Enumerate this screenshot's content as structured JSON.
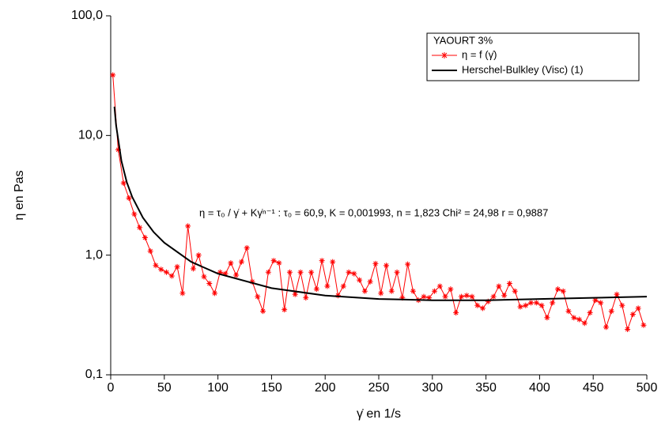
{
  "chart_data": {
    "type": "line",
    "log_y": true,
    "legend_title": "YAOURT 3%",
    "annotation": "η = τ₀ / γ̇ + Kγ̇ⁿ⁻¹ : τ₀ = 60,9, K = 0,001993, n = 1,823 Chi² = 24,98 r = 0,9887",
    "xlabel": "γ̇ en 1/s",
    "ylabel": "η en Pas",
    "xlim": [
      0,
      500
    ],
    "ylim": [
      0.1,
      100
    ],
    "xticks": [
      0,
      50,
      100,
      150,
      200,
      250,
      300,
      350,
      400,
      450,
      500
    ],
    "yticks": [
      {
        "value": 0.1,
        "label": "0,1"
      },
      {
        "value": 1,
        "label": "1,0"
      },
      {
        "value": 10,
        "label": "10,0"
      },
      {
        "value": 100,
        "label": "100,0"
      }
    ],
    "series": [
      {
        "name": "η = f (γ̇)",
        "color": "#ff0000",
        "marker": "asterisk",
        "x": [
          2,
          7,
          12,
          17,
          22,
          27,
          32,
          37,
          42,
          47,
          52,
          57,
          62,
          67,
          72,
          77,
          82,
          87,
          92,
          97,
          102,
          107,
          112,
          117,
          122,
          127,
          132,
          137,
          142,
          147,
          152,
          157,
          162,
          167,
          172,
          177,
          182,
          187,
          192,
          197,
          202,
          207,
          212,
          217,
          222,
          227,
          232,
          237,
          242,
          247,
          252,
          257,
          262,
          267,
          272,
          277,
          282,
          287,
          292,
          297,
          302,
          307,
          312,
          317,
          322,
          327,
          332,
          337,
          342,
          347,
          352,
          357,
          362,
          367,
          372,
          377,
          382,
          387,
          392,
          397,
          402,
          407,
          412,
          417,
          422,
          427,
          432,
          437,
          442,
          447,
          452,
          457,
          462,
          467,
          472,
          477,
          482,
          487,
          492,
          497
        ],
        "values": [
          32,
          7.6,
          4.0,
          3.0,
          2.2,
          1.7,
          1.4,
          1.08,
          0.82,
          0.76,
          0.72,
          0.67,
          0.8,
          0.48,
          1.75,
          0.77,
          1.0,
          0.66,
          0.58,
          0.48,
          0.72,
          0.7,
          0.86,
          0.68,
          0.88,
          1.15,
          0.6,
          0.45,
          0.34,
          0.72,
          0.9,
          0.86,
          0.35,
          0.72,
          0.47,
          0.72,
          0.44,
          0.72,
          0.52,
          0.9,
          0.55,
          0.88,
          0.46,
          0.55,
          0.72,
          0.7,
          0.62,
          0.5,
          0.6,
          0.85,
          0.48,
          0.82,
          0.5,
          0.72,
          0.44,
          0.84,
          0.5,
          0.42,
          0.45,
          0.44,
          0.5,
          0.55,
          0.45,
          0.52,
          0.33,
          0.45,
          0.46,
          0.45,
          0.38,
          0.36,
          0.41,
          0.45,
          0.55,
          0.46,
          0.58,
          0.5,
          0.37,
          0.38,
          0.4,
          0.4,
          0.38,
          0.3,
          0.4,
          0.52,
          0.5,
          0.34,
          0.3,
          0.29,
          0.27,
          0.33,
          0.42,
          0.4,
          0.25,
          0.34,
          0.47,
          0.38,
          0.24,
          0.32,
          0.36,
          0.26
        ]
      },
      {
        "name": "Herschel-Bulkley (Visc) (1)",
        "color": "#000000",
        "marker": "none",
        "x": [
          3.5,
          5,
          10,
          15,
          20,
          30,
          40,
          50,
          75,
          100,
          150,
          200,
          250,
          300,
          350,
          400,
          450,
          500
        ],
        "values": [
          17.4,
          12.19,
          6.1,
          4.08,
          3.07,
          2.06,
          1.56,
          1.27,
          0.88,
          0.7,
          0.53,
          0.46,
          0.43,
          0.42,
          0.42,
          0.43,
          0.44,
          0.45
        ]
      }
    ]
  }
}
